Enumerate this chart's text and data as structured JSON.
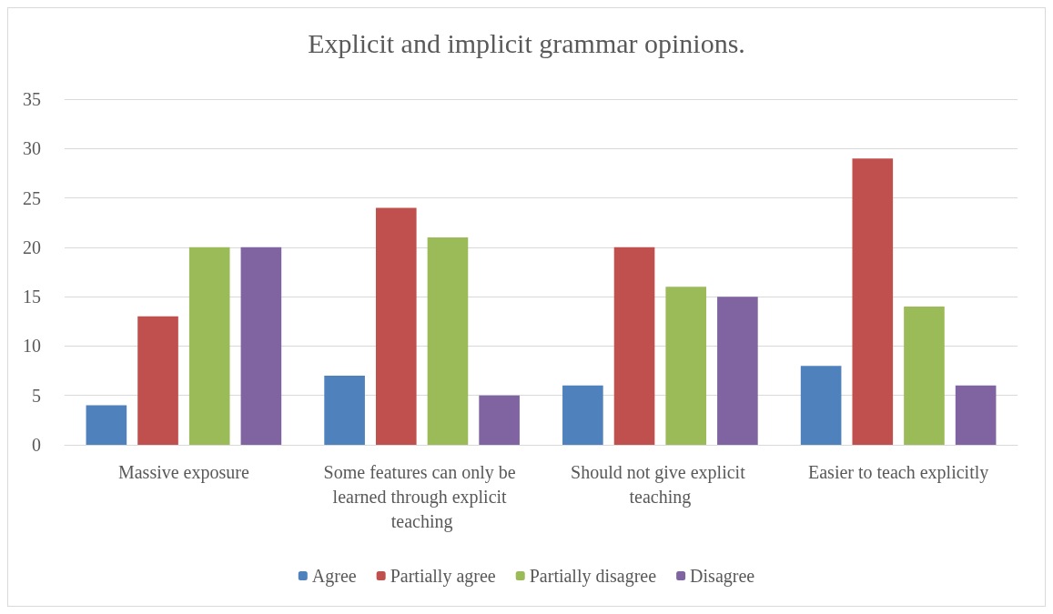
{
  "chart_data": {
    "type": "bar",
    "title": "Explicit and implicit grammar opinions.",
    "categories": [
      "Massive exposure",
      "Some features can only be learned through explicit teaching",
      "Should not give explicit teaching",
      "Easier to teach explicitly"
    ],
    "series": [
      {
        "name": "Agree",
        "color": "#4f81bd",
        "values": [
          4,
          7,
          6,
          8
        ]
      },
      {
        "name": "Partially agree",
        "color": "#c0504d",
        "values": [
          13,
          24,
          20,
          29
        ]
      },
      {
        "name": "Partially disagree",
        "color": "#9bbb59",
        "values": [
          20,
          21,
          16,
          14
        ]
      },
      {
        "name": "Disagree",
        "color": "#8064a2",
        "values": [
          20,
          5,
          15,
          6
        ]
      }
    ],
    "ylim": [
      0,
      35
    ],
    "yticks": [
      0,
      5,
      10,
      15,
      20,
      25,
      30,
      35
    ],
    "grid": "y",
    "legend": "bottom"
  }
}
